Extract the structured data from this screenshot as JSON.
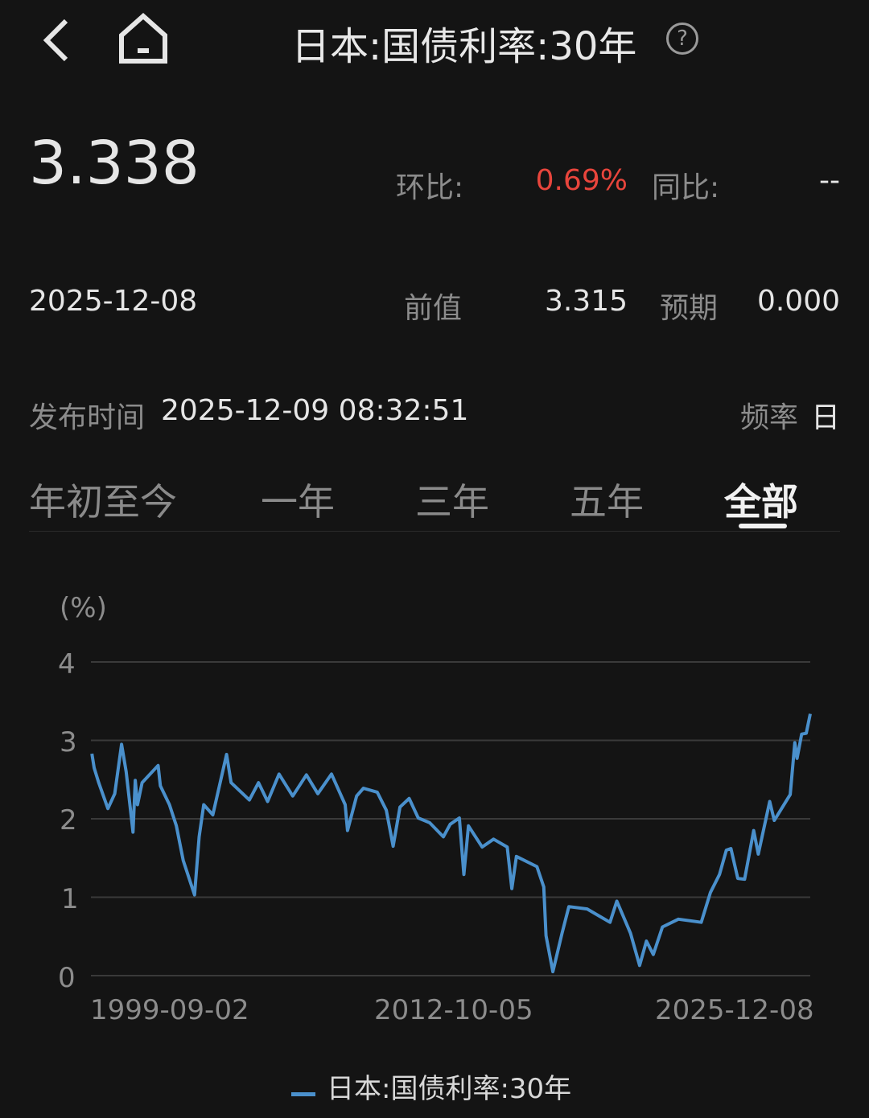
{
  "header": {
    "title": "日本:国债利率:30年",
    "back_icon": "chevron-left-icon",
    "home_icon": "home-icon",
    "help_icon": "question-circle-icon",
    "help_glyph": "?"
  },
  "summary": {
    "value": "3.338",
    "mom_label": "环比:",
    "mom_value": "0.69%",
    "yoy_label": "同比:",
    "yoy_value": "--",
    "date": "2025-12-08",
    "prev_label": "前值",
    "prev_value": "3.315",
    "forecast_label": "预期",
    "forecast_value": "0.000",
    "release_label": "发布时间",
    "release_time": "2025-12-09 08:32:51",
    "freq_label": "频率",
    "freq_value": "日",
    "positive_color": "#e8453c"
  },
  "tabs": [
    {
      "label": "年初至今",
      "active": false
    },
    {
      "label": "一年",
      "active": false
    },
    {
      "label": "三年",
      "active": false
    },
    {
      "label": "五年",
      "active": false
    },
    {
      "label": "全部",
      "active": true
    }
  ],
  "chart_data": {
    "type": "line",
    "ylabel": "(%)",
    "ylim": [
      0,
      4
    ],
    "yticks": [
      "0",
      "1",
      "2",
      "3",
      "4"
    ],
    "xticks": [
      "1999-09-02",
      "2012-10-05",
      "2025-12-08"
    ],
    "xlim": [
      "1999-09-02",
      "2025-12-08"
    ],
    "grid": true,
    "legend": "bottom",
    "series": [
      {
        "name": "日本:国债利率:30年",
        "color": "#4a90cc",
        "x": [
          "1999-09",
          "1999-10",
          "1999-12",
          "2000-04",
          "2000-07",
          "2000-10",
          "2000-12",
          "2001-03",
          "2001-04",
          "2001-05",
          "2001-07",
          "2002-02",
          "2002-03",
          "2002-07",
          "2002-10",
          "2003-01",
          "2003-06",
          "2003-08",
          "2003-10",
          "2004-02",
          "2004-08",
          "2004-10",
          "2005-06",
          "2005-10",
          "2006-02",
          "2006-07",
          "2007-01",
          "2007-07",
          "2007-12",
          "2008-06",
          "2008-12",
          "2009-01",
          "2009-05",
          "2009-08",
          "2010-02",
          "2010-06",
          "2010-09",
          "2010-12",
          "2011-04",
          "2011-08",
          "2012-01",
          "2012-07",
          "2012-10",
          "2013-02",
          "2013-04",
          "2013-06",
          "2013-12",
          "2014-05",
          "2014-11",
          "2015-01",
          "2015-03",
          "2015-12",
          "2016-03",
          "2016-04",
          "2016-07",
          "2016-11",
          "2017-02",
          "2017-10",
          "2018-08",
          "2018-11",
          "2019-05",
          "2019-09",
          "2019-12",
          "2020-03",
          "2020-07",
          "2021-02",
          "2021-12",
          "2022-04",
          "2022-08",
          "2022-11",
          "2023-01",
          "2023-04",
          "2023-07",
          "2023-11",
          "2024-01",
          "2024-06",
          "2024-08",
          "2025-03",
          "2025-05",
          "2025-06",
          "2025-08",
          "2025-10",
          "2025-12-08"
        ],
        "values": [
          2.83,
          2.65,
          2.46,
          2.13,
          2.32,
          2.95,
          2.6,
          1.83,
          2.49,
          2.18,
          2.46,
          2.68,
          2.42,
          2.18,
          1.91,
          1.47,
          1.03,
          1.77,
          2.18,
          2.05,
          2.82,
          2.46,
          2.24,
          2.46,
          2.22,
          2.57,
          2.29,
          2.56,
          2.32,
          2.57,
          2.18,
          1.85,
          2.29,
          2.39,
          2.34,
          2.11,
          1.65,
          2.15,
          2.26,
          2.01,
          1.95,
          1.77,
          1.93,
          2.01,
          1.29,
          1.91,
          1.64,
          1.74,
          1.64,
          1.11,
          1.52,
          1.39,
          1.13,
          0.51,
          0.05,
          0.54,
          0.88,
          0.85,
          0.68,
          0.95,
          0.54,
          0.13,
          0.44,
          0.27,
          0.62,
          0.72,
          0.68,
          1.06,
          1.29,
          1.6,
          1.62,
          1.24,
          1.23,
          1.85,
          1.55,
          2.22,
          1.98,
          2.31,
          2.97,
          2.77,
          3.08,
          3.09,
          3.338
        ]
      }
    ]
  }
}
